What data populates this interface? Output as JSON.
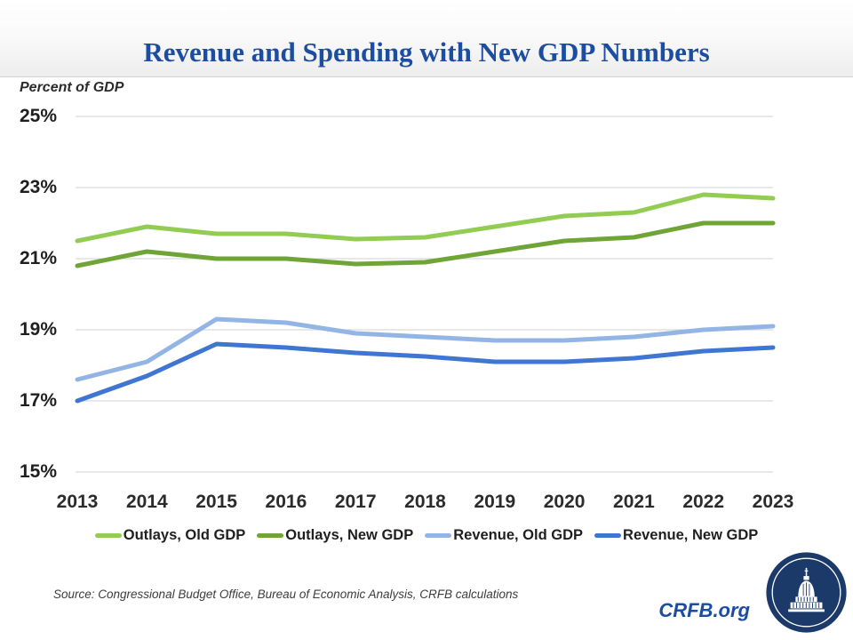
{
  "header": {
    "title": "Revenue and Spending with New GDP Numbers"
  },
  "axis_note": "Percent of GDP",
  "chart_data": {
    "type": "line",
    "title": "Revenue and Spending with New GDP Numbers",
    "ylabel": "Percent of GDP",
    "ylim": [
      15,
      25
    ],
    "grid": true,
    "legend_position": "bottom",
    "yticks": [
      {
        "value": 25,
        "label": "25%"
      },
      {
        "value": 23,
        "label": "23%"
      },
      {
        "value": 21,
        "label": "21%"
      },
      {
        "value": 19,
        "label": "19%"
      },
      {
        "value": 17,
        "label": "17%"
      },
      {
        "value": 15,
        "label": "15%"
      }
    ],
    "categories": [
      2013,
      2014,
      2015,
      2016,
      2017,
      2018,
      2019,
      2020,
      2021,
      2022,
      2023
    ],
    "series": [
      {
        "name": "Outlays, Old GDP",
        "color": "#92cc53",
        "values": [
          21.5,
          21.9,
          21.7,
          21.7,
          21.55,
          21.6,
          21.9,
          22.2,
          22.3,
          22.8,
          22.7
        ]
      },
      {
        "name": "Outlays, New GDP",
        "color": "#6fa437",
        "values": [
          20.8,
          21.2,
          21.0,
          21.0,
          20.85,
          20.9,
          21.2,
          21.5,
          21.6,
          22.0,
          22.0
        ]
      },
      {
        "name": "Revenue, Old GDP",
        "color": "#93b5e6",
        "values": [
          17.6,
          18.1,
          19.3,
          19.2,
          18.9,
          18.8,
          18.7,
          18.7,
          18.8,
          19.0,
          19.1
        ]
      },
      {
        "name": "Revenue, New GDP",
        "color": "#3f76d2",
        "values": [
          17.0,
          17.7,
          18.6,
          18.5,
          18.35,
          18.25,
          18.1,
          18.1,
          18.2,
          18.4,
          18.5
        ]
      }
    ],
    "gridline_color": "#d9d9d9"
  },
  "footer": {
    "source": "Source: Congressional Budget Office, Bureau of Economic Analysis, CRFB calculations",
    "brand": "CRFB.org"
  },
  "colors": {
    "title_blue": "#1d4da1",
    "logo_navy": "#1b3a69"
  }
}
